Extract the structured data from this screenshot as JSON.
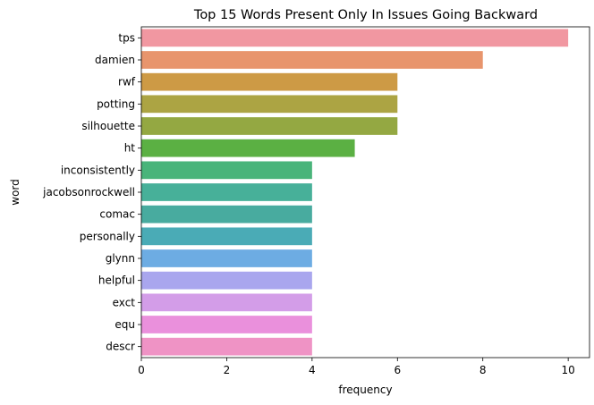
{
  "chart_data": {
    "type": "bar",
    "orientation": "horizontal",
    "title": "Top 15 Words Present Only In Issues Going Backward",
    "xlabel": "frequency",
    "ylabel": "word",
    "xlim": [
      0,
      10.5
    ],
    "xticks": [
      0,
      2,
      4,
      6,
      8,
      10
    ],
    "grid": false,
    "categories": [
      "tps",
      "damien",
      "rwf",
      "potting",
      "silhouette",
      "ht",
      "inconsistently",
      "jacobsonrockwell",
      "comac",
      "personally",
      "glynn",
      "helpful",
      "exct",
      "equ",
      "descr"
    ],
    "values": [
      10,
      8,
      6,
      6,
      6,
      5,
      4,
      4,
      4,
      4,
      4,
      4,
      4,
      4,
      4
    ],
    "colors": [
      "#f197a1",
      "#e8956d",
      "#cd9a45",
      "#aca443",
      "#94a842",
      "#5bb043",
      "#49b47a",
      "#47b099",
      "#48ab9f",
      "#4aabb6",
      "#6dace3",
      "#a9a6ee",
      "#d39de8",
      "#ea90dc",
      "#ef93c5"
    ]
  }
}
